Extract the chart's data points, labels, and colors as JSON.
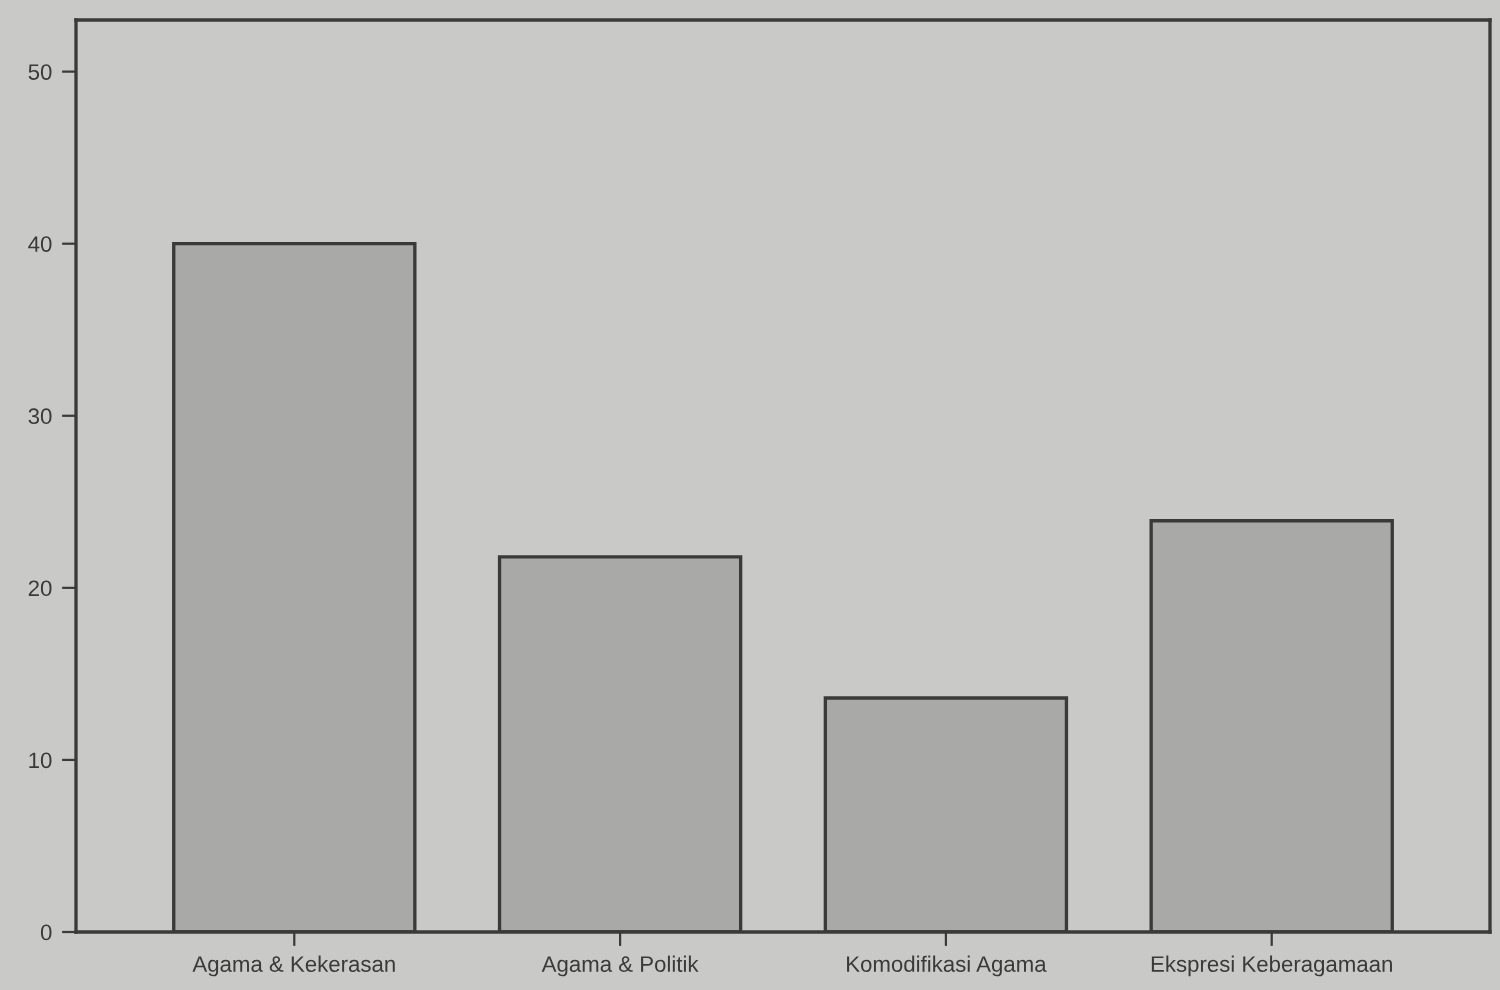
{
  "chart_data": {
    "type": "bar",
    "categories": [
      "Agama & Kekerasan",
      "Agama & Politik",
      "Komodifikasi Agama",
      "Ekspresi Keberagamaan"
    ],
    "values": [
      40,
      21.8,
      13.6,
      23.9
    ],
    "color": "#a9a9a7",
    "ylim": [
      0,
      53
    ],
    "yticks": [
      0,
      10,
      20,
      30,
      40,
      50
    ],
    "grid": false
  }
}
